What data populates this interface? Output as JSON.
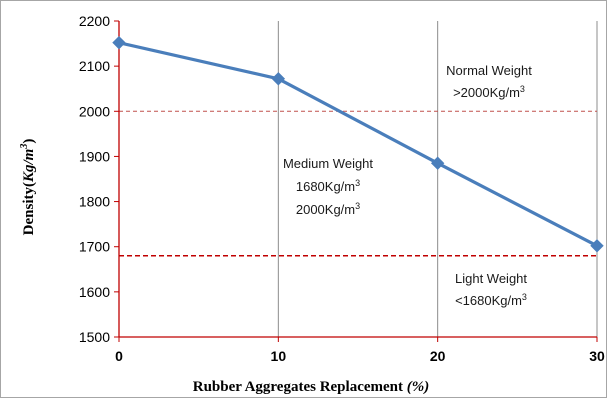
{
  "chart_data": {
    "type": "line",
    "x": [
      0,
      10,
      20,
      30
    ],
    "series": [
      {
        "values": [
          2152,
          2072,
          1885,
          1702
        ],
        "color": "#4a7ebb",
        "marker": "diamond"
      }
    ],
    "xlabel_main": "Rubber Aggregates Replacement ",
    "xlabel_unit": "(%)",
    "ylabel_main": "Density",
    "ylabel_unit_open": "(",
    "ylabel_unit_a": "Kg/m",
    "ylabel_unit_sup": "3",
    "ylabel_unit_close": ")",
    "xlim": [
      0,
      30
    ],
    "ylim": [
      1500,
      2200
    ],
    "x_ticks": [
      "0",
      "10",
      "20",
      "30"
    ],
    "y_ticks": [
      "1500",
      "1600",
      "1700",
      "1800",
      "1900",
      "2000",
      "2100",
      "2200"
    ],
    "grid": "vertical lines only",
    "legend": "none",
    "reference_lines": [
      {
        "value": 2000,
        "style": "dashed",
        "color": "#c0504d"
      },
      {
        "value": 1680,
        "style": "dashed",
        "color": "#c00000"
      }
    ],
    "annotations": {
      "normal": {
        "line1": "Normal Weight",
        "line2_base": ">2000Kg/m",
        "line2_sup": "3"
      },
      "medium": {
        "line1": "Medium Weight",
        "line2_base": "1680Kg/m",
        "line2_sup": "3",
        "line3_base": "2000Kg/m",
        "line3_sup": "3"
      },
      "light": {
        "line1": "Light Weight",
        "line2_base": "<1680Kg/m",
        "line2_sup": "3"
      }
    }
  }
}
